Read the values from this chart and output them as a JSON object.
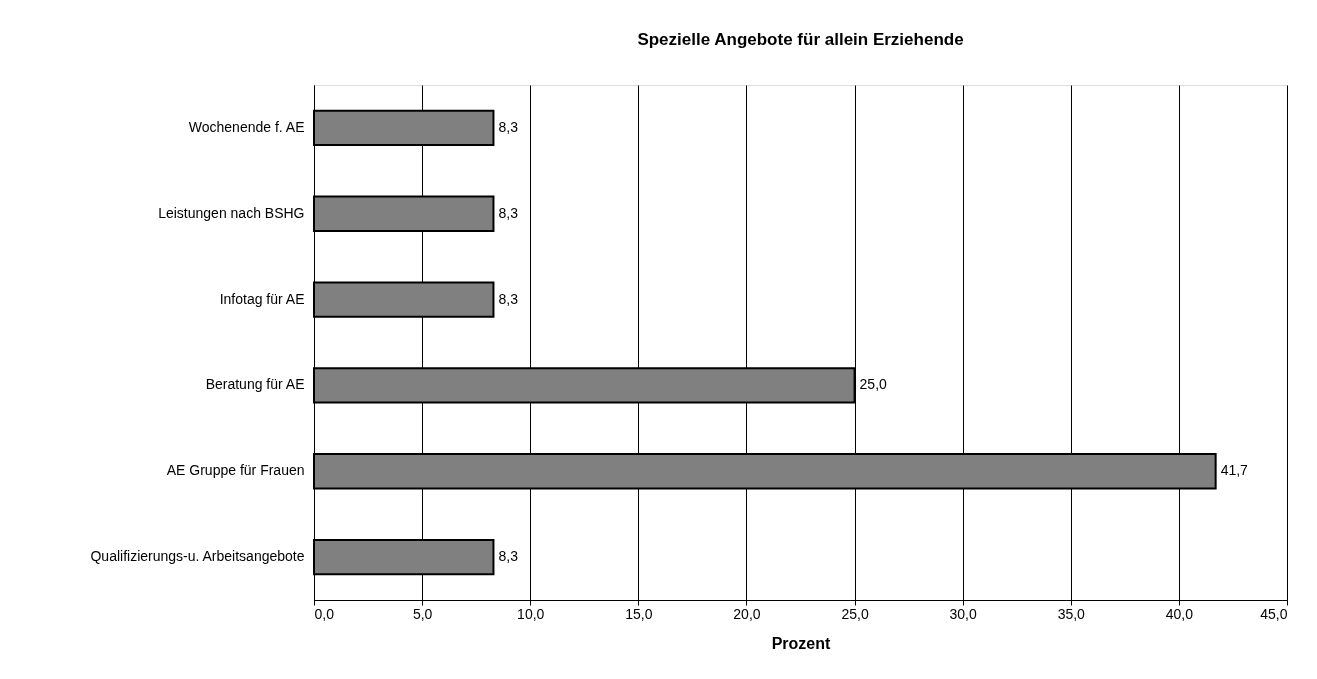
{
  "chart_data": {
    "type": "bar",
    "orientation": "horizontal",
    "title": "Spezielle Angebote für allein Erziehende",
    "xlabel": "Prozent",
    "categories": [
      "Wochenende f. AE",
      "Leistungen nach BSHG",
      "Infotag für AE",
      "Beratung für AE",
      "AE Gruppe für Frauen",
      "Qualifizierungs-u. Arbeitsangebote"
    ],
    "values": [
      8.3,
      8.3,
      8.3,
      25.0,
      41.7,
      8.3
    ],
    "value_labels": [
      "8,3",
      "8,3",
      "8,3",
      "25,0",
      "41,7",
      "8,3"
    ],
    "color": "#808080",
    "xlim": [
      0,
      45
    ],
    "xticks": [
      {
        "value": 0,
        "label": "0,0"
      },
      {
        "value": 5,
        "label": "5,0"
      },
      {
        "value": 10,
        "label": "10,0"
      },
      {
        "value": 15,
        "label": "15,0"
      },
      {
        "value": 20,
        "label": "20,0"
      },
      {
        "value": 25,
        "label": "25,0"
      },
      {
        "value": 30,
        "label": "30,0"
      },
      {
        "value": 35,
        "label": "35,0"
      },
      {
        "value": 40,
        "label": "40,0"
      },
      {
        "value": 45,
        "label": "45,0"
      }
    ],
    "grid": "x"
  }
}
